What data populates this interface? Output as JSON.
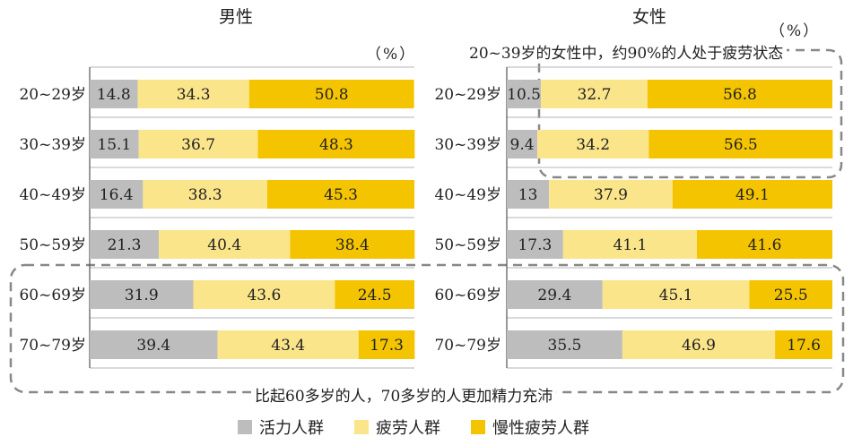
{
  "chart_data": [
    {
      "type": "bar",
      "stacked": true,
      "orientation": "horizontal",
      "title": "男性",
      "unit": "（%）",
      "categories": [
        "20~29岁",
        "30~39岁",
        "40~49岁",
        "50~59岁",
        "60~69岁",
        "70~79岁"
      ],
      "series": [
        {
          "name": "活力人群",
          "color": "#bdbdbd",
          "values": [
            14.8,
            15.1,
            16.4,
            21.3,
            31.9,
            39.4
          ]
        },
        {
          "name": "疲劳人群",
          "color": "#fbe58a",
          "values": [
            34.3,
            36.7,
            38.3,
            40.4,
            43.6,
            43.4
          ]
        },
        {
          "name": "慢性疲劳人群",
          "color": "#f5c400",
          "values": [
            50.8,
            48.3,
            45.3,
            38.4,
            24.5,
            17.3
          ]
        }
      ],
      "xlim": [
        0,
        100
      ]
    },
    {
      "type": "bar",
      "stacked": true,
      "orientation": "horizontal",
      "title": "女性",
      "unit": "（%）",
      "categories": [
        "20~29岁",
        "30~39岁",
        "40~49岁",
        "50~59岁",
        "60~69岁",
        "70~79岁"
      ],
      "series": [
        {
          "name": "活力人群",
          "color": "#bdbdbd",
          "values": [
            10.5,
            9.4,
            13,
            17.3,
            29.4,
            35.5
          ]
        },
        {
          "name": "疲劳人群",
          "color": "#fbe58a",
          "values": [
            32.7,
            34.2,
            37.9,
            41.1,
            45.1,
            46.9
          ]
        },
        {
          "name": "慢性疲劳人群",
          "color": "#f5c400",
          "values": [
            56.8,
            56.5,
            49.1,
            41.6,
            25.5,
            17.6
          ]
        }
      ],
      "xlim": [
        0,
        100
      ]
    }
  ],
  "annotations": {
    "female_young": "20~39岁的女性中，约90%的人处于疲劳状态",
    "older": "比起60多岁的人，70多岁的人更加精力充沛"
  },
  "legend": [
    {
      "label": "活力人群",
      "color": "#bdbdbd"
    },
    {
      "label": "疲劳人群",
      "color": "#fbe58a"
    },
    {
      "label": "慢性疲劳人群",
      "color": "#f5c400"
    }
  ]
}
